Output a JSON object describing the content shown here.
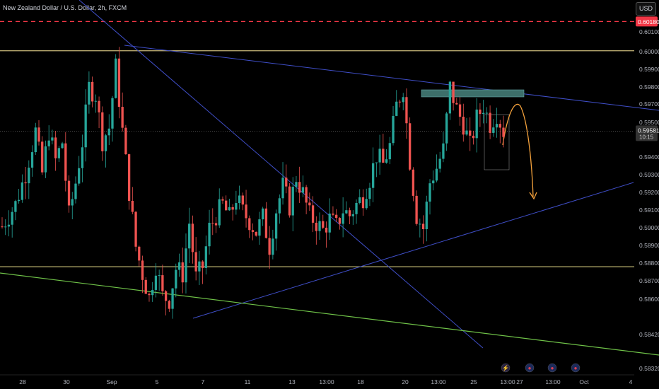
{
  "header": {
    "title": "New Zealand Dollar / U.S. Dollar, 2h, FXCM",
    "currency_button": "USD"
  },
  "colors": {
    "background": "#000000",
    "bull": "#26a69a",
    "bear": "#ef5350",
    "axis_text": "#b2b5be"
  },
  "chart_data": {
    "type": "candlestick",
    "symbol": "NZD/USD",
    "interval": "2h",
    "source": "FXCM",
    "xlabel": "",
    "ylabel": "",
    "ylim": [
      0.5828,
      0.6022
    ],
    "y_ticks": [
      "0.60100",
      "0.60000",
      "0.59900",
      "0.59800",
      "0.59700",
      "0.59500",
      "0.59400",
      "0.59300",
      "0.59200",
      "0.59100",
      "0.59000",
      "0.58900",
      "0.58800",
      "0.58700",
      "0.58600",
      "0.58420",
      "0.58320"
    ],
    "x_ticks": [
      "28",
      "30",
      "Sep",
      "5",
      "7",
      "11",
      "13",
      "13:00",
      "18",
      "20",
      "13:00",
      "25",
      "13:00",
      "27",
      "13:00",
      "Oct",
      "4"
    ],
    "current_price": "0.59581",
    "countdown": "10:15",
    "alert_level": "0.60180",
    "path_points": [
      [
        0,
        0.5906
      ],
      [
        4,
        0.5918
      ],
      [
        7,
        0.5935
      ],
      [
        10,
        0.5958
      ],
      [
        12,
        0.5935
      ],
      [
        14,
        0.5958
      ],
      [
        16,
        0.5942
      ],
      [
        18,
        0.5952
      ],
      [
        20,
        0.5912
      ],
      [
        22,
        0.593
      ],
      [
        24,
        0.5952
      ],
      [
        26,
        0.5982
      ],
      [
        28,
        0.5978
      ],
      [
        30,
        0.5953
      ],
      [
        32,
        0.596
      ],
      [
        34,
        0.5993
      ],
      [
        36,
        0.5958
      ],
      [
        38,
        0.5925
      ],
      [
        40,
        0.5895
      ],
      [
        42,
        0.588
      ],
      [
        44,
        0.5867
      ],
      [
        46,
        0.5885
      ],
      [
        48,
        0.5868
      ],
      [
        50,
        0.5866
      ],
      [
        52,
        0.5883
      ],
      [
        54,
        0.588
      ],
      [
        56,
        0.5908
      ],
      [
        58,
        0.5878
      ],
      [
        60,
        0.5884
      ],
      [
        62,
        0.5905
      ],
      [
        64,
        0.5912
      ],
      [
        66,
        0.5918
      ],
      [
        68,
        0.5911
      ],
      [
        70,
        0.5922
      ],
      [
        72,
        0.5914
      ],
      [
        74,
        0.5909
      ],
      [
        76,
        0.5903
      ],
      [
        78,
        0.5911
      ],
      [
        80,
        0.5895
      ],
      [
        82,
        0.5915
      ],
      [
        84,
        0.5928
      ],
      [
        86,
        0.5917
      ],
      [
        88,
        0.5933
      ],
      [
        90,
        0.5924
      ],
      [
        92,
        0.5912
      ],
      [
        94,
        0.5908
      ],
      [
        96,
        0.5904
      ],
      [
        98,
        0.591
      ],
      [
        100,
        0.5906
      ],
      [
        102,
        0.5915
      ],
      [
        104,
        0.5912
      ],
      [
        106,
        0.5918
      ],
      [
        108,
        0.5922
      ],
      [
        110,
        0.5932
      ],
      [
        112,
        0.5945
      ],
      [
        114,
        0.594
      ],
      [
        116,
        0.595
      ],
      [
        118,
        0.5972
      ],
      [
        120,
        0.5982
      ],
      [
        122,
        0.5942
      ],
      [
        124,
        0.5912
      ],
      [
        126,
        0.5905
      ],
      [
        128,
        0.593
      ],
      [
        130,
        0.5938
      ],
      [
        132,
        0.5948
      ],
      [
        134,
        0.5982
      ],
      [
        136,
        0.597
      ],
      [
        138,
        0.5962
      ],
      [
        140,
        0.595
      ],
      [
        142,
        0.5965
      ],
      [
        144,
        0.5972
      ],
      [
        146,
        0.5962
      ],
      [
        148,
        0.5968
      ],
      [
        150,
        0.5958
      ]
    ],
    "horizontal_levels": [
      {
        "price": 0.6018,
        "style": "dashed",
        "color": "#f23645"
      },
      {
        "price": 0.6002,
        "style": "solid",
        "color": "#c9b87a"
      },
      {
        "price": 0.5884,
        "style": "solid",
        "color": "#b7b06d"
      }
    ],
    "events": [
      "lightning",
      "us-flag",
      "us-flag",
      "us-flag"
    ],
    "event_icons": [
      "⚡",
      "●",
      "●",
      "●"
    ]
  }
}
